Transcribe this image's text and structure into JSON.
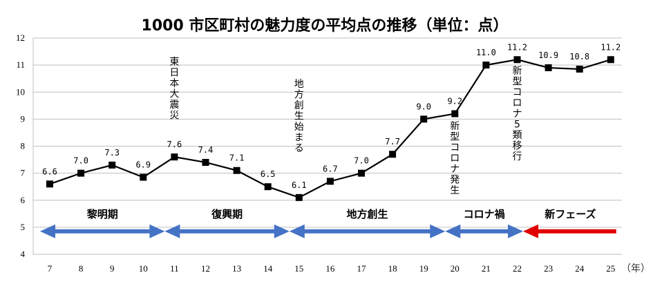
{
  "chart_data": {
    "type": "line",
    "title": "1000 市区町村の魅力度の平均点の推移（単位：点）",
    "x_unit": "（年）",
    "categories": [
      "7",
      "8",
      "9",
      "10",
      "11",
      "12",
      "13",
      "14",
      "15",
      "16",
      "17",
      "18",
      "19",
      "20",
      "21",
      "22",
      "23",
      "24",
      "25"
    ],
    "values": [
      6.6,
      7.0,
      7.3,
      6.85,
      7.6,
      7.4,
      7.1,
      6.5,
      6.1,
      6.7,
      7.0,
      7.7,
      9.0,
      9.2,
      11.0,
      11.2,
      10.9,
      10.85,
      11.2
    ],
    "data_labels": [
      "6.6",
      "7.0",
      "7.3",
      "6.9",
      "7.6",
      "7.4",
      "7.1",
      "6.5",
      "6.1",
      "6.7",
      "7.0",
      "7.7",
      "9.0",
      "9.2",
      "11.0",
      "11.2",
      "10.9",
      "10.8",
      "11.2"
    ],
    "ylim": [
      4,
      12
    ],
    "yticks": [
      "4",
      "5",
      "6",
      "7",
      "8",
      "9",
      "10",
      "11",
      "12"
    ],
    "grid": true,
    "line_color": "#000000",
    "annotations": [
      {
        "text": "東日本大震災",
        "x": "11"
      },
      {
        "text": "地方創生始まる",
        "x": "15"
      },
      {
        "text": "新型コロナ発生",
        "x": "20"
      },
      {
        "text": "新型コロナ5類移行",
        "x": "22"
      }
    ],
    "phases": [
      {
        "label": "黎明期",
        "from": 7,
        "to": 11,
        "arrow": "double",
        "color": "#4472C4"
      },
      {
        "label": "復興期",
        "from": 11,
        "to": 15,
        "arrow": "double",
        "color": "#4472C4"
      },
      {
        "label": "地方創生",
        "from": 15,
        "to": 20,
        "arrow": "double",
        "color": "#4472C4"
      },
      {
        "label": "コロナ禍",
        "from": 20,
        "to": 22.5,
        "arrow": "double",
        "color": "#4472C4"
      },
      {
        "label": "新フェーズ",
        "from": 22.5,
        "to": 25,
        "arrow": "left",
        "color": "#E00000"
      }
    ]
  }
}
